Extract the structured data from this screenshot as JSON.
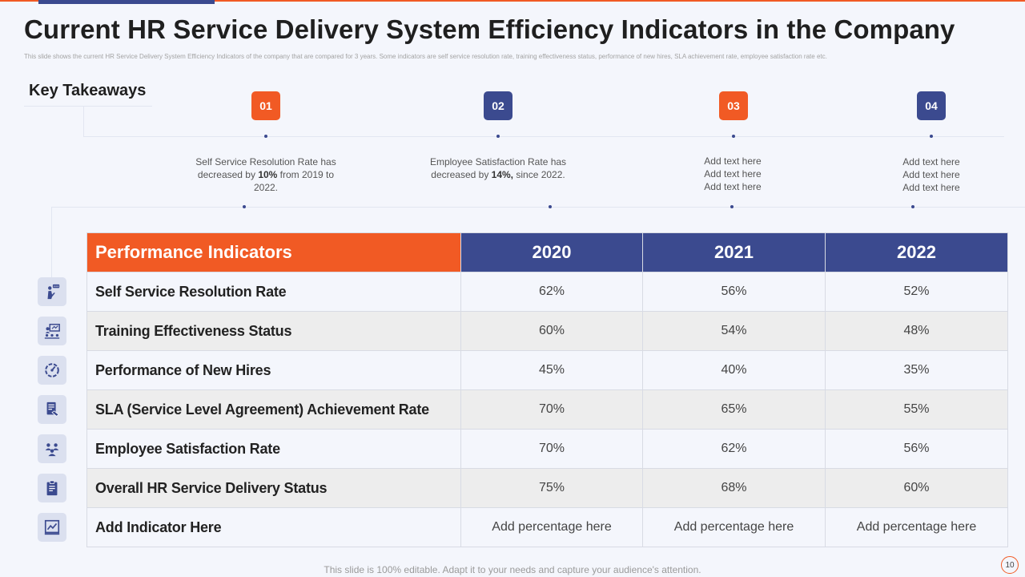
{
  "slide": {
    "title": "Current HR Service Delivery System Efficiency Indicators in the Company",
    "subtitle": "This slide shows the current HR Service Delivery System Efficiency Indicators of the company that are compared for 3 years. Some indicators are self service resolution rate, training effectiveness status, performance of new hires, SLA achievement rate, employee satisfaction rate etc.",
    "footer": "This slide is 100% editable. Adapt it to your needs and capture your audience's attention.",
    "page_number": "10"
  },
  "colors": {
    "accent_orange": "#f15a24",
    "accent_navy": "#3b4a8f",
    "icon_bg": "#dbe0ef"
  },
  "takeaways": {
    "heading": "Key Takeaways",
    "items": [
      {
        "number": "01",
        "color": "orange",
        "pre": "Self Service Resolution Rate has decreased by ",
        "bold": "10%",
        "post": " from 2019 to 2022."
      },
      {
        "number": "02",
        "color": "navy",
        "pre": "Employee Satisfaction Rate has decreased by ",
        "bold": "14%,",
        "post": " since 2022."
      },
      {
        "number": "03",
        "color": "orange",
        "lines": [
          "Add text here",
          "Add text here",
          "Add text here"
        ]
      },
      {
        "number": "04",
        "color": "navy",
        "lines": [
          "Add text here",
          "Add text here",
          "Add text here"
        ]
      }
    ]
  },
  "table": {
    "headers": [
      "Performance Indicators",
      "2020",
      "2021",
      "2022"
    ],
    "rows": [
      {
        "icon": "presenter-icon",
        "name": "Self Service Resolution Rate",
        "values": [
          "62%",
          "56%",
          "52%"
        ]
      },
      {
        "icon": "training-board-icon",
        "name": "Training Effectiveness Status",
        "values": [
          "60%",
          "54%",
          "48%"
        ]
      },
      {
        "icon": "performance-gauge-icon",
        "name": "Performance of New Hires",
        "values": [
          "45%",
          "40%",
          "35%"
        ]
      },
      {
        "icon": "agreement-document-icon",
        "name": "SLA (Service Level Agreement) Achievement Rate",
        "values": [
          "70%",
          "65%",
          "55%"
        ]
      },
      {
        "icon": "team-icon",
        "name": "Employee Satisfaction Rate",
        "values": [
          "70%",
          "62%",
          "56%"
        ]
      },
      {
        "icon": "clipboard-icon",
        "name": "Overall HR Service Delivery Status",
        "values": [
          "75%",
          "68%",
          "60%"
        ]
      },
      {
        "icon": "growth-chart-icon",
        "name": "Add Indicator Here",
        "values": [
          "Add percentage here",
          "Add percentage here",
          "Add percentage here"
        ]
      }
    ]
  }
}
